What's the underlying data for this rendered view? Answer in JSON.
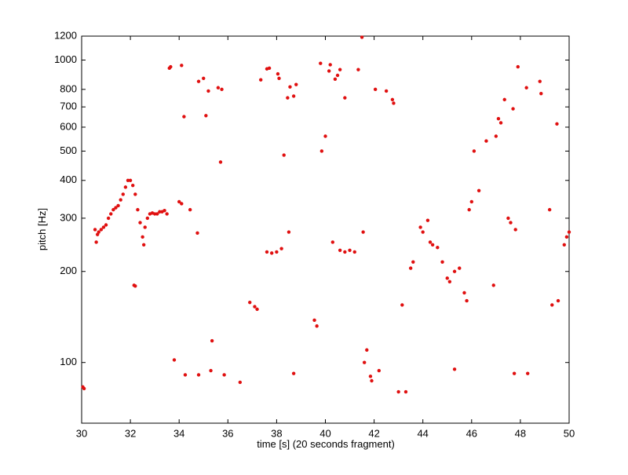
{
  "chart_data": {
    "type": "scatter",
    "xlabel": "time [s] (20 seconds fragment)",
    "ylabel": "pitch [Hz]",
    "log_y": true,
    "color": "#e01010",
    "xlim": [
      30,
      50
    ],
    "xticks": [
      30,
      32,
      34,
      36,
      38,
      40,
      42,
      44,
      46,
      48,
      50
    ],
    "ylim": [
      63,
      1200
    ],
    "yticks": [
      100,
      200,
      300,
      400,
      500,
      600,
      700,
      800,
      1000,
      1200
    ],
    "x": [
      30.05,
      30.1,
      30.55,
      30.6,
      30.65,
      30.7,
      30.8,
      30.9,
      31.0,
      31.1,
      31.2,
      31.3,
      31.4,
      31.5,
      31.6,
      31.7,
      31.8,
      31.9,
      32.0,
      32.1,
      32.2,
      32.3,
      32.4,
      32.5,
      32.55,
      32.6,
      32.7,
      32.8,
      32.9,
      33.0,
      33.1,
      33.2,
      33.3,
      33.4,
      33.5,
      32.15,
      32.2,
      33.6,
      33.65,
      34.1,
      34.2,
      34.0,
      34.1,
      34.45,
      34.8,
      35.0,
      35.2,
      35.1,
      35.6,
      35.75,
      35.7,
      34.75,
      33.8,
      34.25,
      34.8,
      35.3,
      35.35,
      35.85,
      36.5,
      36.9,
      37.1,
      37.2,
      37.35,
      37.6,
      37.7,
      37.6,
      37.8,
      38.0,
      38.2,
      38.05,
      38.1,
      38.3,
      38.45,
      38.55,
      38.7,
      38.8,
      38.5,
      38.7,
      39.55,
      39.65,
      39.8,
      39.85,
      40.0,
      40.15,
      40.2,
      40.4,
      40.5,
      40.6,
      40.8,
      40.3,
      40.6,
      40.8,
      41.0,
      41.2,
      41.35,
      41.5,
      41.55,
      41.6,
      41.7,
      41.85,
      41.9,
      42.05,
      42.2,
      42.5,
      42.75,
      42.8,
      43.0,
      43.3,
      43.15,
      43.5,
      43.6,
      43.9,
      44.0,
      44.2,
      44.3,
      44.4,
      44.6,
      44.8,
      45.0,
      45.1,
      45.3,
      45.5,
      45.7,
      45.8,
      45.3,
      45.9,
      46.0,
      46.1,
      46.3,
      46.6,
      46.9,
      47.0,
      47.1,
      47.2,
      47.35,
      47.5,
      47.6,
      47.8,
      47.7,
      47.75,
      47.9,
      48.3,
      48.25,
      48.8,
      48.85,
      49.2,
      49.3,
      49.55,
      49.5,
      49.8,
      49.9,
      50.0
    ],
    "values": [
      83,
      82,
      275,
      250,
      265,
      270,
      275,
      280,
      285,
      300,
      310,
      320,
      325,
      330,
      345,
      360,
      380,
      400,
      400,
      385,
      360,
      320,
      290,
      260,
      245,
      280,
      300,
      310,
      312,
      310,
      310,
      315,
      315,
      318,
      310,
      180,
      179,
      940,
      950,
      960,
      650,
      340,
      335,
      320,
      850,
      870,
      790,
      655,
      810,
      800,
      460,
      268,
      102,
      91,
      91,
      94,
      118,
      91,
      86,
      158,
      153,
      150,
      860,
      935,
      940,
      232,
      230,
      232,
      238,
      900,
      870,
      485,
      750,
      815,
      760,
      830,
      270,
      92,
      138,
      132,
      975,
      500,
      560,
      920,
      965,
      865,
      890,
      930,
      750,
      250,
      235,
      232,
      235,
      232,
      930,
      1190,
      270,
      100,
      110,
      90,
      87,
      800,
      94,
      790,
      740,
      720,
      80,
      80,
      155,
      205,
      215,
      280,
      270,
      295,
      250,
      245,
      240,
      215,
      190,
      185,
      200,
      205,
      170,
      160,
      95,
      320,
      340,
      500,
      370,
      540,
      180,
      560,
      640,
      620,
      740,
      300,
      290,
      275,
      690,
      92,
      950,
      92,
      810,
      850,
      775,
      320,
      155,
      160,
      615,
      245,
      260,
      270
    ]
  }
}
